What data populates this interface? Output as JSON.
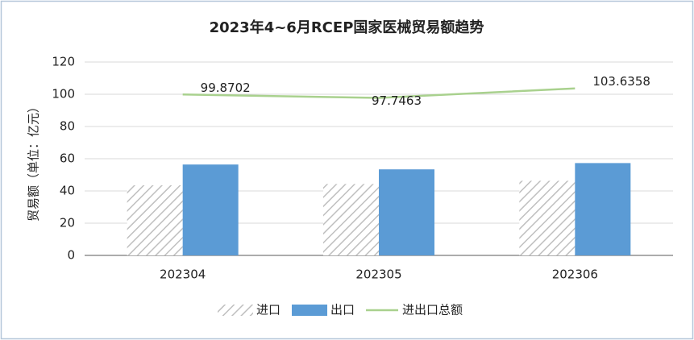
{
  "chart_data": {
    "type": "bar",
    "title": "2023年4~6月RCEP国家医械贸易额趋势",
    "y_label": "贸易额（单位：亿元）",
    "categories": [
      "202304",
      "202305",
      "202306"
    ],
    "series": [
      {
        "name": "进口",
        "type": "bar",
        "color": "#bfbfbf",
        "hatch": true,
        "values": [
          43.5,
          44.3,
          46.3
        ]
      },
      {
        "name": "出口",
        "type": "bar",
        "color": "#5b9bd5",
        "values": [
          56.4,
          53.4,
          57.3
        ]
      },
      {
        "name": "进出口总额",
        "type": "line",
        "color": "#a9d18e",
        "values": [
          99.8702,
          97.7463,
          103.6358
        ]
      }
    ],
    "ylim": [
      0,
      120
    ],
    "yticks": [
      0,
      20,
      40,
      60,
      80,
      100,
      120
    ],
    "grid": true,
    "legend": "bottom"
  }
}
